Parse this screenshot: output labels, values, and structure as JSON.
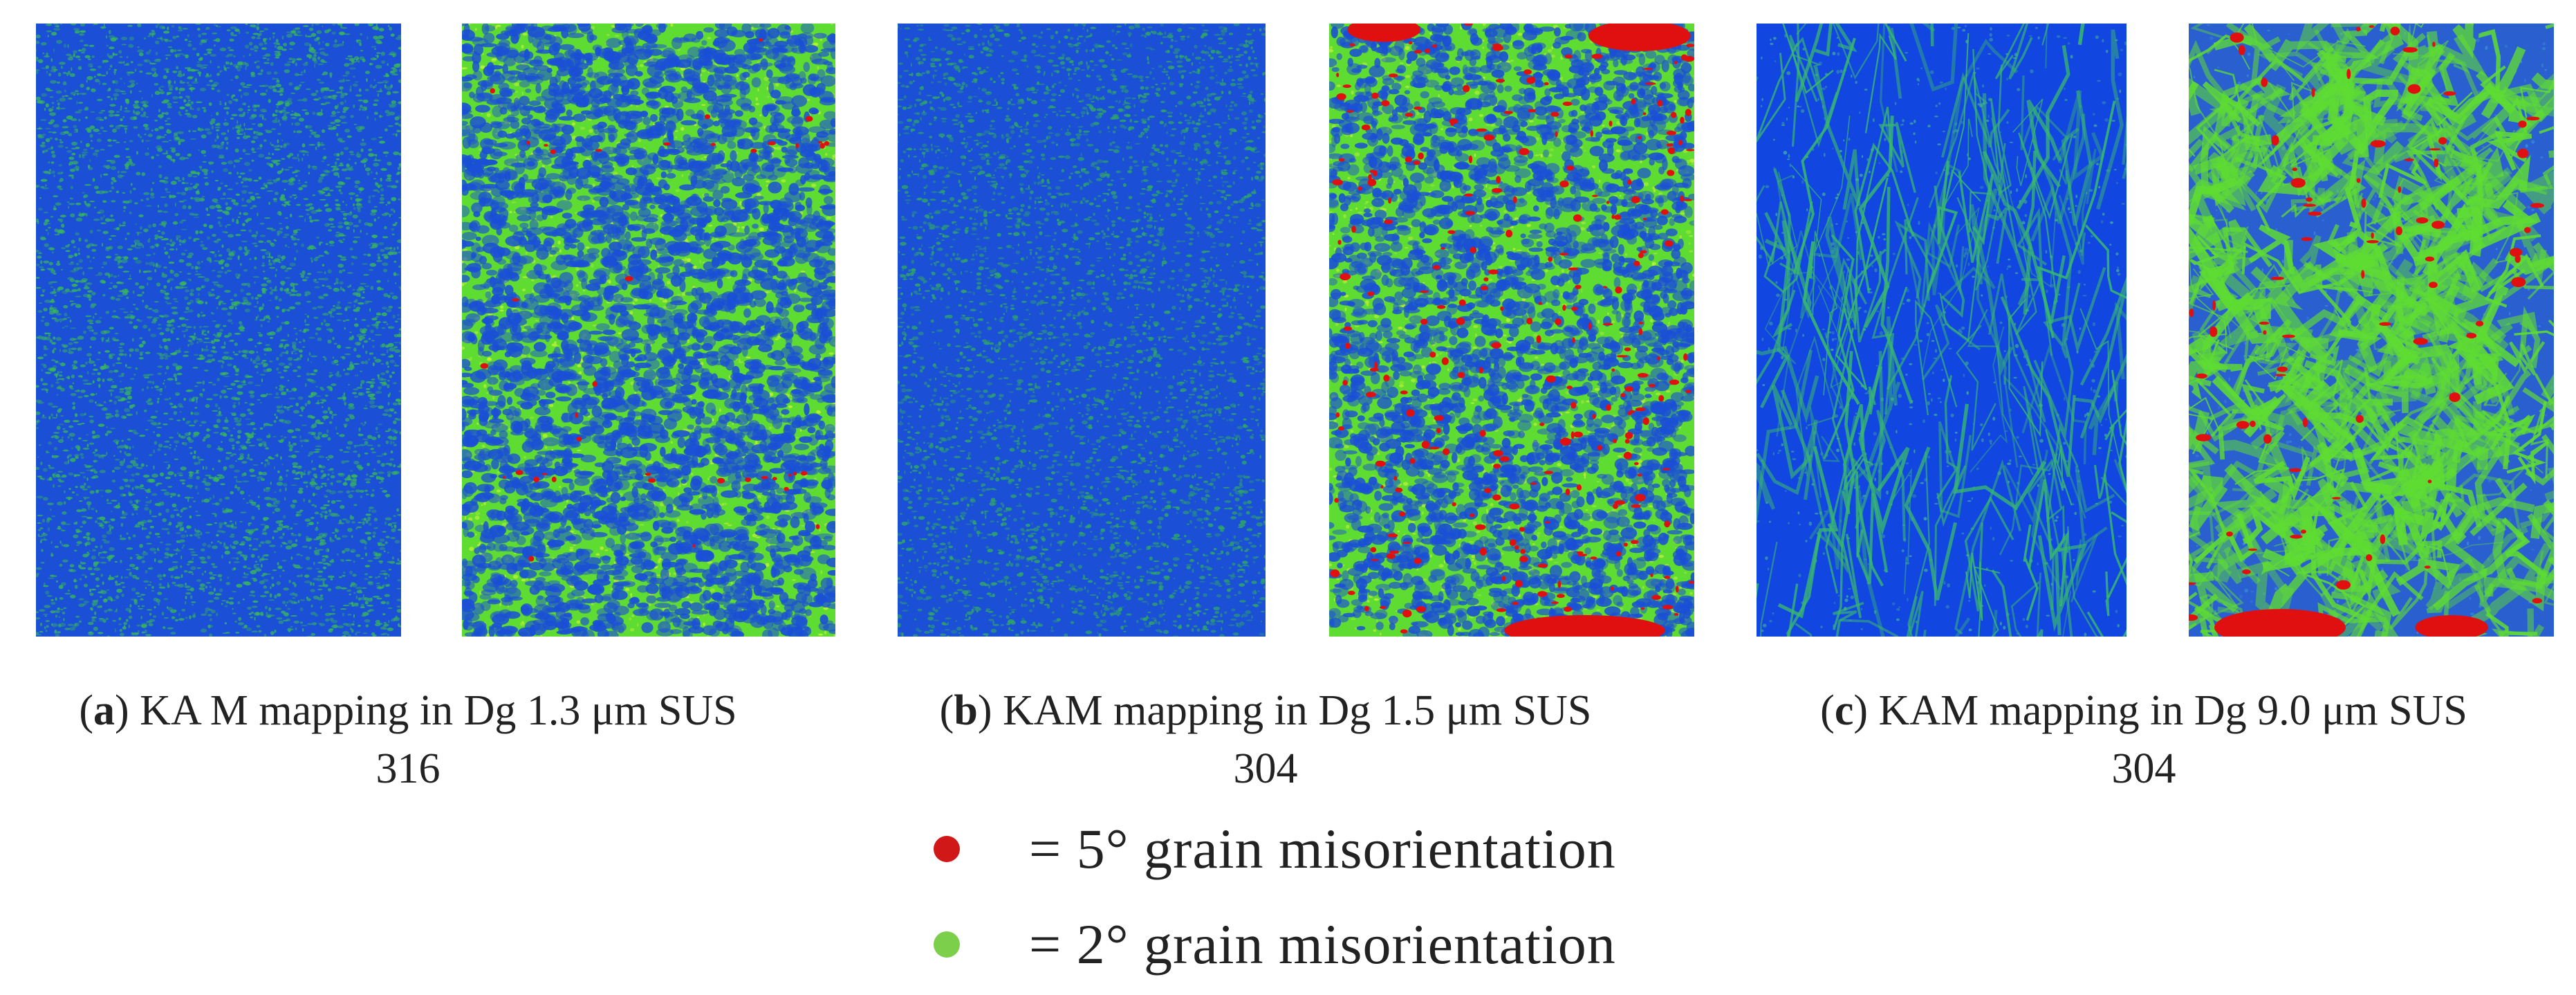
{
  "colors": {
    "blue": "#1a4fd6",
    "green": "#5fdc32",
    "red": "#e01010",
    "legend_red": "#d01818",
    "legend_green": "#7ccf4a"
  },
  "panels": [
    {
      "id": "a",
      "caption_letter": "a",
      "caption_line1": ") KA M mapping in Dg 1.3 μm SUS",
      "caption_line2": "316"
    },
    {
      "id": "b",
      "caption_letter": "b",
      "caption_line1": ") KAM mapping in Dg 1.5 μm SUS",
      "caption_line2": "304"
    },
    {
      "id": "c",
      "caption_letter": "c",
      "caption_line1": ") KAM mapping in Dg 9.0 μm SUS",
      "caption_line2": "304"
    }
  ],
  "legend": {
    "items": [
      {
        "label": "= 5° grain misorientation",
        "color_key": "legend_red"
      },
      {
        "label": "= 2° grain misorientation",
        "color_key": "legend_green"
      }
    ]
  }
}
